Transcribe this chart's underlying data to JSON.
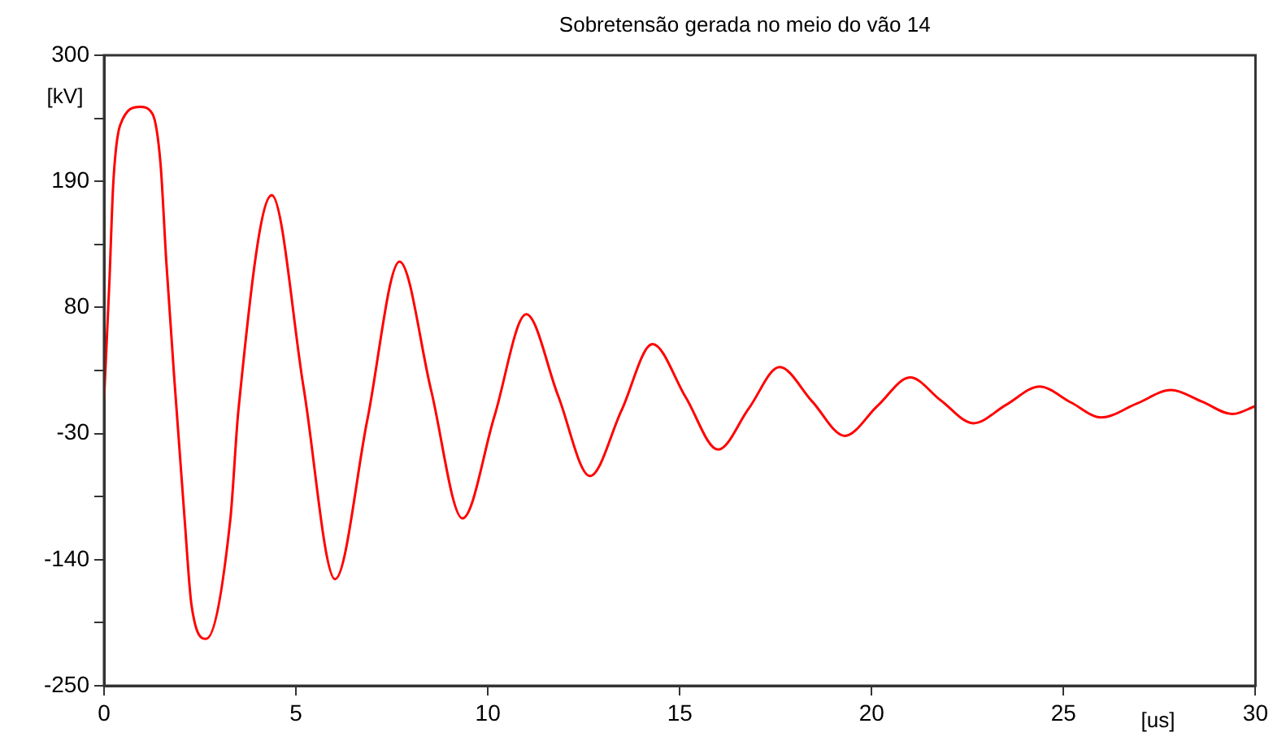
{
  "chart_data": {
    "type": "line",
    "title": "Sobretensão gerada no meio do vão 14",
    "xlabel": "[us]",
    "ylabel": "[kV]",
    "x": [
      0,
      0.14,
      0.24,
      0.42,
      0.94,
      1.26,
      1.47,
      1.62,
      1.83,
      2.1,
      2.28,
      2.66,
      3.29,
      3.5,
      4.37,
      5.2,
      6.02,
      6.86,
      7.7,
      8.52,
      9.34,
      10.17,
      11.0,
      11.83,
      12.66,
      13.48,
      14.29,
      15.15,
      16.0,
      16.8,
      17.6,
      18.45,
      19.3,
      20.15,
      21.0,
      21.8,
      22.65,
      23.5,
      24.37,
      25.2,
      25.98,
      26.9,
      27.8,
      28.6,
      29.4,
      30
    ],
    "series": [
      {
        "color": "#ff0000",
        "values": [
          0,
          103,
          188,
          239,
          255,
          249,
          206,
          121,
          18,
          -105,
          -180,
          -209,
          -105,
          -10,
          178,
          10,
          -157,
          -18,
          120,
          8,
          -104,
          -15,
          74,
          3,
          -67,
          -10,
          48,
          2,
          -44,
          -8,
          28,
          -2,
          -32,
          -6,
          19,
          -1,
          -21,
          -5,
          11,
          -3,
          -16,
          -4,
          8,
          -2,
          -13,
          -6
        ]
      }
    ],
    "xlim": [
      0,
      30
    ],
    "xticks": [
      0,
      5,
      10,
      15,
      20,
      25,
      30
    ],
    "ylim": [
      -250,
      300
    ],
    "yticks": [
      300,
      {
        "value": 245,
        "label": null
      },
      190,
      {
        "value": 135,
        "label": null
      },
      80,
      {
        "value": 25,
        "label": null
      },
      -30,
      {
        "value": -85,
        "label": null
      },
      -140,
      {
        "value": -195,
        "label": null
      },
      -250
    ],
    "grid": false,
    "legend": false,
    "marker": "none",
    "line_style": "solid"
  }
}
